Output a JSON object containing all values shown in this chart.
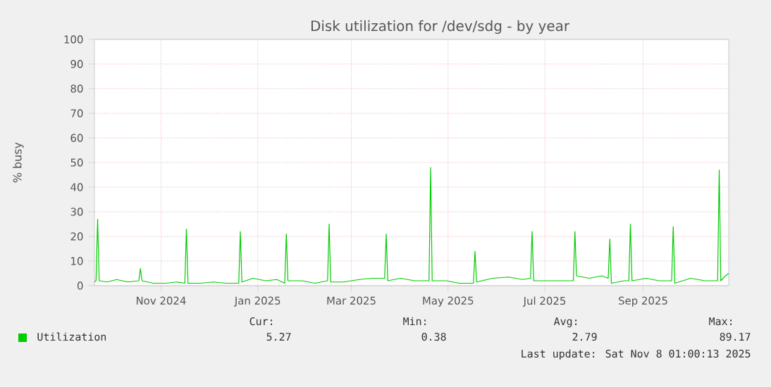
{
  "chart_data": {
    "type": "line",
    "title": "Disk utilization for /dev/sdg - by year",
    "ylabel": "% busy",
    "x": [
      "2024-10-04",
      "2024-10-05",
      "2024-10-06",
      "2024-10-07",
      "2024-10-12",
      "2024-10-18",
      "2024-10-25",
      "2024-11-01",
      "2024-11-02",
      "2024-11-03",
      "2024-11-10",
      "2024-11-18",
      "2024-11-25",
      "2024-11-30",
      "2024-12-01",
      "2024-12-02",
      "2024-12-10",
      "2024-12-18",
      "2024-12-26",
      "2025-01-03",
      "2025-01-04",
      "2025-01-05",
      "2025-01-12",
      "2025-01-20",
      "2025-01-27",
      "2025-02-01",
      "2025-02-02",
      "2025-02-03",
      "2025-02-12",
      "2025-02-20",
      "2025-02-28",
      "2025-03-01",
      "2025-03-02",
      "2025-03-10",
      "2025-03-20",
      "2025-03-28",
      "2025-04-05",
      "2025-04-06",
      "2025-04-07",
      "2025-04-15",
      "2025-04-24",
      "2025-05-03",
      "2025-05-04",
      "2025-05-05",
      "2025-05-14",
      "2025-05-22",
      "2025-05-31",
      "2025-06-01",
      "2025-06-02",
      "2025-06-12",
      "2025-06-22",
      "2025-07-01",
      "2025-07-06",
      "2025-07-07",
      "2025-07-08",
      "2025-07-18",
      "2025-07-27",
      "2025-08-02",
      "2025-08-03",
      "2025-08-04",
      "2025-08-12",
      "2025-08-20",
      "2025-08-24",
      "2025-08-25",
      "2025-08-26",
      "2025-09-03",
      "2025-09-06",
      "2025-09-07",
      "2025-09-08",
      "2025-09-17",
      "2025-09-25",
      "2025-10-03",
      "2025-10-04",
      "2025-10-05",
      "2025-10-15",
      "2025-10-24",
      "2025-11-01",
      "2025-11-02",
      "2025-11-03",
      "2025-11-06",
      "2025-11-08"
    ],
    "series": [
      {
        "name": "Utilization",
        "color": "#00cc00",
        "values": [
          1.5,
          2,
          27,
          2,
          1.5,
          2.5,
          1.5,
          2,
          7,
          2,
          1,
          1,
          1.5,
          1,
          23,
          1,
          1,
          1.5,
          1,
          1,
          22,
          1.5,
          3,
          2,
          2.5,
          1,
          21,
          2,
          2,
          1,
          2,
          25,
          1.5,
          1.5,
          2.5,
          3,
          3,
          21,
          2,
          3,
          2,
          2,
          48,
          2,
          2,
          1,
          1,
          14,
          1.5,
          3,
          3.5,
          2.5,
          3,
          22,
          2,
          2,
          2,
          2,
          22,
          4,
          3,
          4,
          3,
          19,
          1,
          2,
          2,
          25,
          2,
          3,
          2,
          2,
          24,
          1,
          3,
          2,
          2,
          47,
          2,
          4,
          5
        ]
      }
    ],
    "xlim": [
      "2024-10-04",
      "2025-11-08"
    ],
    "xticks": [
      {
        "value": "2024-11-15",
        "label": "Nov 2024"
      },
      {
        "value": "2025-01-15",
        "label": "Jan 2025"
      },
      {
        "value": "2025-03-15",
        "label": "Mar 2025"
      },
      {
        "value": "2025-05-15",
        "label": "May 2025"
      },
      {
        "value": "2025-07-15",
        "label": "Jul 2025"
      },
      {
        "value": "2025-09-15",
        "label": "Sep 2025"
      }
    ],
    "ylim": [
      0,
      100
    ],
    "yticks": [
      0,
      10,
      20,
      30,
      40,
      50,
      60,
      70,
      80,
      90,
      100
    ],
    "grid": true,
    "legend": "bottom",
    "marker": "none",
    "line_style": "solid",
    "annotations": [
      "Cur:",
      "5.27",
      "Min:",
      "0.38",
      "Avg:",
      "2.79",
      "Max:",
      "89.17",
      "Last update: Sat Nov 8 01:00:13 2025"
    ]
  }
}
